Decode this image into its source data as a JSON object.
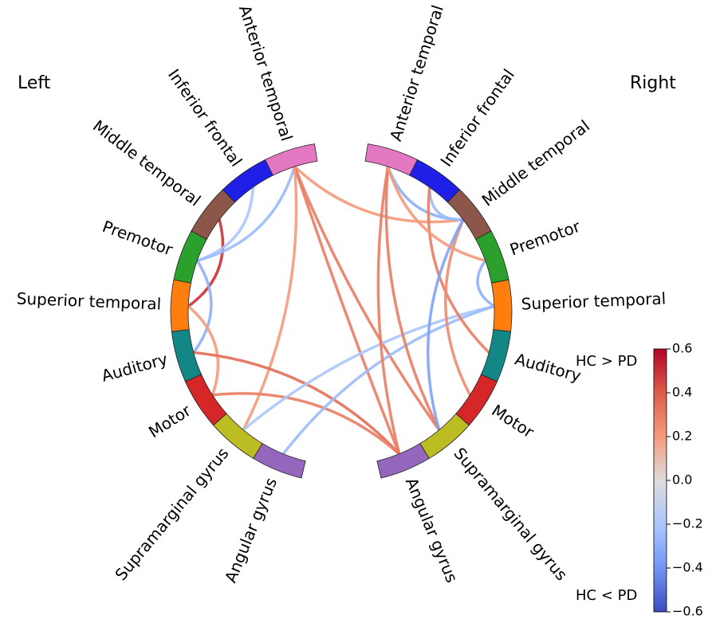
{
  "sides": {
    "left": "Left",
    "right": "Right"
  },
  "nodes": [
    {
      "id": "L-anterior-temporal",
      "side": "left",
      "label": "Anterior temporal",
      "color": "#e377c2"
    },
    {
      "id": "L-inferior-frontal",
      "side": "left",
      "label": "Inferior frontal",
      "color": "#1f1fe8"
    },
    {
      "id": "L-middle-temporal",
      "side": "left",
      "label": "Middle temporal",
      "color": "#8c564b"
    },
    {
      "id": "L-premotor",
      "side": "left",
      "label": "Premotor",
      "color": "#2ca02c"
    },
    {
      "id": "L-superior-temporal",
      "side": "left",
      "label": "Superior temporal",
      "color": "#ff7f0e"
    },
    {
      "id": "L-auditory",
      "side": "left",
      "label": "Auditory",
      "color": "#138785"
    },
    {
      "id": "L-motor",
      "side": "left",
      "label": "Motor",
      "color": "#d62728"
    },
    {
      "id": "L-supramarginal-gyrus",
      "side": "left",
      "label": "Supramarginal gyrus",
      "color": "#bcbd22"
    },
    {
      "id": "L-angular-gyrus",
      "side": "left",
      "label": "Angular gyrus",
      "color": "#9467bd"
    },
    {
      "id": "R-anterior-temporal",
      "side": "right",
      "label": "Anterior temporal",
      "color": "#e377c2"
    },
    {
      "id": "R-inferior-frontal",
      "side": "right",
      "label": "Inferior frontal",
      "color": "#1f1fe8"
    },
    {
      "id": "R-middle-temporal",
      "side": "right",
      "label": "Middle temporal",
      "color": "#8c564b"
    },
    {
      "id": "R-premotor",
      "side": "right",
      "label": "Premotor",
      "color": "#2ca02c"
    },
    {
      "id": "R-superior-temporal",
      "side": "right",
      "label": "Superior temporal",
      "color": "#ff7f0e"
    },
    {
      "id": "R-auditory",
      "side": "right",
      "label": "Auditory",
      "color": "#138785"
    },
    {
      "id": "R-motor",
      "side": "right",
      "label": "Motor",
      "color": "#d62728"
    },
    {
      "id": "R-supramarginal-gyrus",
      "side": "right",
      "label": "Supramarginal gyrus",
      "color": "#bcbd22"
    },
    {
      "id": "R-angular-gyrus",
      "side": "right",
      "label": "Angular gyrus",
      "color": "#9467bd"
    }
  ],
  "connections": [
    {
      "from": "L-middle-temporal",
      "to": "L-superior-temporal",
      "value": 0.5
    },
    {
      "from": "L-inferior-frontal",
      "to": "L-premotor",
      "value": -0.2
    },
    {
      "from": "L-premotor",
      "to": "L-anterior-temporal",
      "value": -0.25
    },
    {
      "from": "L-anterior-temporal",
      "to": "R-middle-temporal",
      "value": 0.2
    },
    {
      "from": "L-anterior-temporal",
      "to": "R-supramarginal-gyrus",
      "value": 0.3
    },
    {
      "from": "L-anterior-temporal",
      "to": "R-angular-gyrus",
      "value": 0.3
    },
    {
      "from": "L-anterior-temporal",
      "to": "L-supramarginal-gyrus",
      "value": 0.2
    },
    {
      "from": "L-premotor",
      "to": "L-auditory",
      "value": -0.3
    },
    {
      "from": "L-superior-temporal",
      "to": "L-motor",
      "value": 0.2
    },
    {
      "from": "L-auditory",
      "to": "R-angular-gyrus",
      "value": 0.35
    },
    {
      "from": "L-motor",
      "to": "R-angular-gyrus",
      "value": 0.3
    },
    {
      "from": "L-supramarginal-gyrus",
      "to": "R-superior-temporal",
      "value": -0.2
    },
    {
      "from": "L-angular-gyrus",
      "to": "R-superior-temporal",
      "value": -0.25
    },
    {
      "from": "R-anterior-temporal",
      "to": "R-middle-temporal",
      "value": -0.3
    },
    {
      "from": "R-anterior-temporal",
      "to": "R-supramarginal-gyrus",
      "value": 0.3
    },
    {
      "from": "R-anterior-temporal",
      "to": "R-angular-gyrus",
      "value": 0.3
    },
    {
      "from": "R-inferior-frontal",
      "to": "R-middle-temporal",
      "value": -0.25
    },
    {
      "from": "R-inferior-frontal",
      "to": "R-auditory",
      "value": 0.3
    },
    {
      "from": "R-middle-temporal",
      "to": "R-motor",
      "value": 0.25
    },
    {
      "from": "R-middle-temporal",
      "to": "R-supramarginal-gyrus",
      "value": -0.35
    },
    {
      "from": "R-premotor",
      "to": "R-superior-temporal",
      "value": -0.3
    },
    {
      "from": "R-anterior-temporal",
      "to": "R-premotor",
      "value": 0.2
    }
  ],
  "colorbar": {
    "top_label": "HC > PD",
    "bottom_label": "HC < PD",
    "ticks": [
      "0.6",
      "0.4",
      "0.2",
      "0.0",
      "−0.2",
      "−0.4",
      "−0.6"
    ],
    "min": -0.6,
    "max": 0.6,
    "colormap": "coolwarm"
  }
}
